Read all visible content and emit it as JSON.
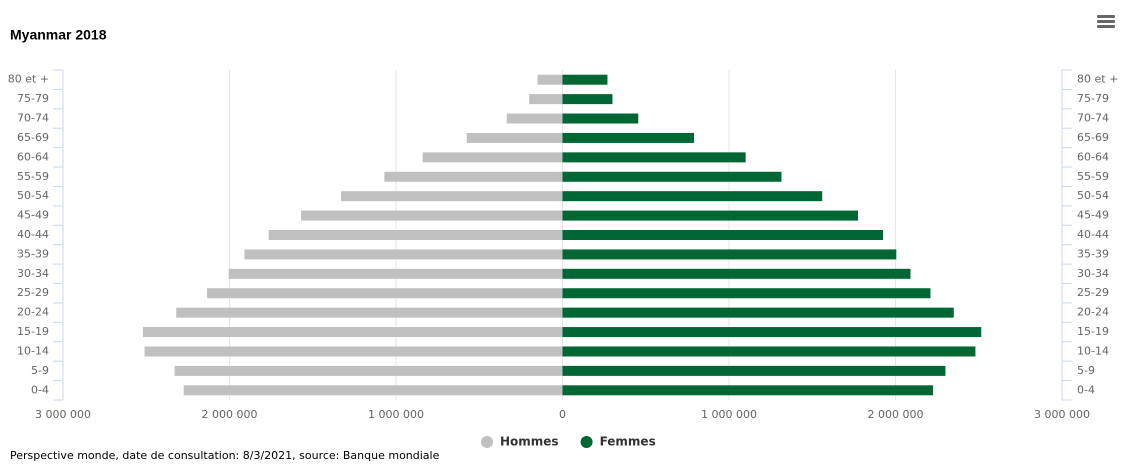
{
  "chart_data": {
    "type": "pyramid",
    "title": "Myanmar 2018",
    "categories": [
      "80 et +",
      "75-79",
      "70-74",
      "65-69",
      "60-64",
      "55-59",
      "50-54",
      "45-49",
      "40-44",
      "35-39",
      "30-34",
      "25-29",
      "20-24",
      "15-19",
      "10-14",
      "5-9",
      "0-4"
    ],
    "series": [
      {
        "name": "Hommes",
        "color": "#c0c0c0",
        "values": [
          -150000,
          -200000,
          -335000,
          -575000,
          -840000,
          -1070000,
          -1330000,
          -1570000,
          -1765000,
          -1910000,
          -2005000,
          -2135000,
          -2320000,
          -2520000,
          -2510000,
          -2330000,
          -2275000
        ]
      },
      {
        "name": "Femmes",
        "color": "#006633",
        "values": [
          270000,
          300000,
          455000,
          790000,
          1100000,
          1315000,
          1560000,
          1775000,
          1925000,
          2005000,
          2090000,
          2210000,
          2350000,
          2515000,
          2480000,
          2300000,
          2225000
        ]
      }
    ],
    "xlim": [
      -3000000,
      3000000
    ],
    "xticks": [
      {
        "value": -3000000,
        "label": "3 000 000"
      },
      {
        "value": -2000000,
        "label": "2 000 000"
      },
      {
        "value": -1000000,
        "label": "1 000 000"
      },
      0,
      {
        "value": 1000000,
        "label": "1 000 000"
      },
      {
        "value": 2000000,
        "label": "2 000 000"
      },
      {
        "value": 3000000,
        "label": "3 000 000"
      }
    ],
    "grid": true,
    "legend": "bottom",
    "footer": "Perspective monde, date de consultation: 8/3/2021, source: Banque mondiale"
  }
}
